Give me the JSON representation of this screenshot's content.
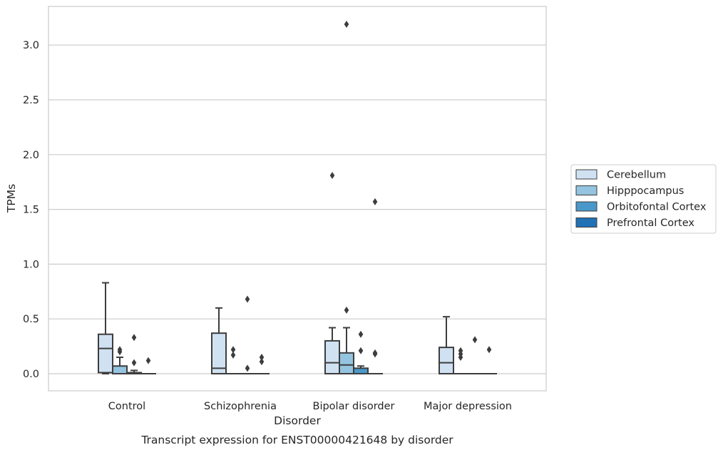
{
  "chart_data": {
    "type": "box",
    "title": "",
    "caption": "Transcript expression for ENST00000421648 by disorder",
    "xlabel": "Disorder",
    "ylabel": "TPMs",
    "ylim": [
      -0.16,
      3.35
    ],
    "yticks": [
      "0.0",
      "0.5",
      "1.0",
      "1.5",
      "2.0",
      "2.5",
      "3.0"
    ],
    "ytick_values": [
      0.0,
      0.5,
      1.0,
      1.5,
      2.0,
      2.5,
      3.0
    ],
    "categories": [
      "Control",
      "Schizophrenia",
      "Bipolar disorder",
      "Major depression"
    ],
    "grid": "horizontal",
    "legend_placement": "right-center",
    "series": [
      {
        "name": "Cerebellum",
        "color": "#d0e1f2",
        "boxes": [
          {
            "q1": 0.01,
            "median": 0.23,
            "q3": 0.36,
            "whisker_low": 0.0,
            "whisker_high": 0.83,
            "outliers": []
          },
          {
            "q1": 0.0,
            "median": 0.05,
            "q3": 0.37,
            "whisker_low": 0.0,
            "whisker_high": 0.6,
            "outliers": []
          },
          {
            "q1": 0.0,
            "median": 0.1,
            "q3": 0.3,
            "whisker_low": 0.0,
            "whisker_high": 0.42,
            "outliers": [
              1.81
            ]
          },
          {
            "q1": 0.0,
            "median": 0.1,
            "q3": 0.24,
            "whisker_low": 0.0,
            "whisker_high": 0.52,
            "outliers": []
          }
        ]
      },
      {
        "name": "Hipppocampus",
        "color": "#94c4df",
        "boxes": [
          {
            "q1": 0.0,
            "median": 0.0,
            "q3": 0.07,
            "whisker_low": 0.0,
            "whisker_high": 0.15,
            "outliers": [
              0.2,
              0.22
            ]
          },
          {
            "q1": 0.0,
            "median": 0.0,
            "q3": 0.0,
            "whisker_low": 0.0,
            "whisker_high": 0.0,
            "outliers": [
              0.17,
              0.22
            ]
          },
          {
            "q1": 0.0,
            "median": 0.08,
            "q3": 0.19,
            "whisker_low": 0.0,
            "whisker_high": 0.42,
            "outliers": [
              0.58,
              3.19
            ]
          },
          {
            "q1": 0.0,
            "median": 0.0,
            "q3": 0.0,
            "whisker_low": 0.0,
            "whisker_high": 0.0,
            "outliers": [
              0.15,
              0.18,
              0.21
            ]
          }
        ]
      },
      {
        "name": "Orbitofontal Cortex",
        "color": "#4a98c9",
        "boxes": [
          {
            "q1": 0.0,
            "median": 0.0,
            "q3": 0.01,
            "whisker_low": 0.0,
            "whisker_high": 0.03,
            "outliers": [
              0.1,
              0.33
            ]
          },
          {
            "q1": 0.0,
            "median": 0.0,
            "q3": 0.0,
            "whisker_low": 0.0,
            "whisker_high": 0.0,
            "outliers": [
              0.05,
              0.68
            ]
          },
          {
            "q1": 0.0,
            "median": 0.0,
            "q3": 0.05,
            "whisker_low": 0.0,
            "whisker_high": 0.07,
            "outliers": [
              0.21,
              0.36
            ]
          },
          {
            "q1": 0.0,
            "median": 0.0,
            "q3": 0.0,
            "whisker_low": 0.0,
            "whisker_high": 0.0,
            "outliers": [
              0.31
            ]
          }
        ]
      },
      {
        "name": "Prefrontal Cortex",
        "color": "#2171b5",
        "boxes": [
          {
            "q1": 0.0,
            "median": 0.0,
            "q3": 0.0,
            "whisker_low": 0.0,
            "whisker_high": 0.0,
            "outliers": [
              0.12
            ]
          },
          {
            "q1": 0.0,
            "median": 0.0,
            "q3": 0.0,
            "whisker_low": 0.0,
            "whisker_high": 0.0,
            "outliers": [
              0.11,
              0.15
            ]
          },
          {
            "q1": 0.0,
            "median": 0.0,
            "q3": 0.0,
            "whisker_low": 0.0,
            "whisker_high": 0.0,
            "outliers": [
              0.18,
              0.19,
              1.57
            ]
          },
          {
            "q1": 0.0,
            "median": 0.0,
            "q3": 0.0,
            "whisker_low": 0.0,
            "whisker_high": 0.0,
            "outliers": [
              0.22
            ]
          }
        ]
      }
    ]
  }
}
